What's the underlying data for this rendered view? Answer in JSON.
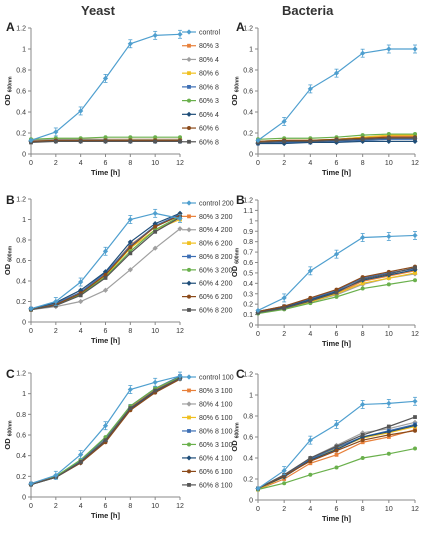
{
  "column_titles": {
    "left": "Yeast",
    "right": "Bacteria"
  },
  "subscript": "600nm",
  "colors": {
    "control": "#4f9fcf",
    "80% 3": "#e8803a",
    "80% 4": "#a0a0a0",
    "80% 6": "#f0c020",
    "80% 8": "#3c6eb4",
    "60% 3": "#6ab04c",
    "60% 4": "#1f4e79",
    "60% 6": "#8b4a1a",
    "60% 8": "#555555"
  },
  "chart_data": [
    {
      "id": "yeast-a",
      "panel_label": "A",
      "type": "line",
      "xlabel": "Time [h]",
      "ylabel": "OD",
      "xlim": [
        0,
        12
      ],
      "ylim": [
        0,
        1.2
      ],
      "xticks": [
        "0",
        "2",
        "4",
        "6",
        "8",
        "10",
        "12"
      ],
      "yticks": [
        "0",
        "0.2",
        "0.4",
        "0.6",
        "0.8",
        "1",
        "1.2"
      ],
      "x": [
        0,
        2,
        4,
        6,
        8,
        10,
        12
      ],
      "legend": "right",
      "series": [
        {
          "name": "control",
          "values": [
            0.13,
            0.21,
            0.41,
            0.72,
            1.05,
            1.13,
            1.14
          ]
        },
        {
          "name": "80% 3",
          "values": [
            0.13,
            0.14,
            0.14,
            0.14,
            0.14,
            0.14,
            0.14
          ]
        },
        {
          "name": "80% 4",
          "values": [
            0.13,
            0.14,
            0.14,
            0.14,
            0.14,
            0.14,
            0.14
          ]
        },
        {
          "name": "80% 6",
          "values": [
            0.12,
            0.13,
            0.13,
            0.13,
            0.13,
            0.13,
            0.13
          ]
        },
        {
          "name": "80% 8",
          "values": [
            0.12,
            0.13,
            0.13,
            0.13,
            0.12,
            0.12,
            0.12
          ]
        },
        {
          "name": "60% 3",
          "values": [
            0.14,
            0.15,
            0.15,
            0.16,
            0.16,
            0.16,
            0.16
          ]
        },
        {
          "name": "60% 4",
          "values": [
            0.12,
            0.12,
            0.12,
            0.12,
            0.12,
            0.12,
            0.12
          ]
        },
        {
          "name": "60% 6",
          "values": [
            0.12,
            0.13,
            0.13,
            0.13,
            0.13,
            0.13,
            0.13
          ]
        },
        {
          "name": "60% 8",
          "values": [
            0.11,
            0.12,
            0.12,
            0.12,
            0.12,
            0.12,
            0.12
          ]
        }
      ]
    },
    {
      "id": "bacteria-a",
      "panel_label": "A",
      "type": "line",
      "xlabel": "Time [h]",
      "ylabel": "OD",
      "xlim": [
        0,
        12
      ],
      "ylim": [
        0,
        1.2
      ],
      "xticks": [
        "0",
        "2",
        "4",
        "6",
        "8",
        "10",
        "12"
      ],
      "yticks": [
        "0",
        "0.2",
        "0.4",
        "0.6",
        "0.8",
        "1",
        "1.2"
      ],
      "x": [
        0,
        2,
        4,
        6,
        8,
        10,
        12
      ],
      "legend": "none",
      "series": [
        {
          "name": "control",
          "values": [
            0.13,
            0.31,
            0.62,
            0.77,
            0.96,
            1.0,
            1.0
          ]
        },
        {
          "name": "80% 3",
          "values": [
            0.12,
            0.13,
            0.13,
            0.14,
            0.16,
            0.17,
            0.17
          ]
        },
        {
          "name": "80% 4",
          "values": [
            0.11,
            0.12,
            0.12,
            0.13,
            0.14,
            0.15,
            0.15
          ]
        },
        {
          "name": "80% 6",
          "values": [
            0.12,
            0.13,
            0.13,
            0.14,
            0.16,
            0.18,
            0.18
          ]
        },
        {
          "name": "80% 8",
          "values": [
            0.1,
            0.11,
            0.11,
            0.12,
            0.13,
            0.14,
            0.14
          ]
        },
        {
          "name": "60% 3",
          "values": [
            0.14,
            0.15,
            0.15,
            0.16,
            0.18,
            0.19,
            0.19
          ]
        },
        {
          "name": "60% 4",
          "values": [
            0.1,
            0.1,
            0.11,
            0.11,
            0.12,
            0.12,
            0.12
          ]
        },
        {
          "name": "60% 6",
          "values": [
            0.12,
            0.13,
            0.13,
            0.14,
            0.15,
            0.16,
            0.16
          ]
        },
        {
          "name": "60% 8",
          "values": [
            0.11,
            0.12,
            0.12,
            0.13,
            0.14,
            0.15,
            0.15
          ]
        }
      ]
    },
    {
      "id": "yeast-b",
      "panel_label": "B",
      "type": "line",
      "xlabel": "Time [h]",
      "ylabel": "OD",
      "xlim": [
        0,
        12
      ],
      "ylim": [
        0,
        1.2
      ],
      "xticks": [
        "0",
        "2",
        "4",
        "6",
        "8",
        "10",
        "12"
      ],
      "yticks": [
        "0",
        "0.2",
        "0.4",
        "0.6",
        "0.8",
        "1",
        "1.2"
      ],
      "x": [
        0,
        2,
        4,
        6,
        8,
        10,
        12
      ],
      "legend": "right",
      "series": [
        {
          "name": "control 200",
          "values": [
            0.13,
            0.2,
            0.39,
            0.69,
            1.0,
            1.06,
            1.01
          ]
        },
        {
          "name": "80% 3 200",
          "values": [
            0.13,
            0.18,
            0.29,
            0.47,
            0.75,
            0.93,
            1.05
          ]
        },
        {
          "name": "80% 4 200",
          "values": [
            0.12,
            0.15,
            0.2,
            0.31,
            0.51,
            0.72,
            0.91
          ]
        },
        {
          "name": "80% 6 200",
          "values": [
            0.12,
            0.17,
            0.27,
            0.45,
            0.72,
            0.9,
            1.0
          ]
        },
        {
          "name": "80% 8 200",
          "values": [
            0.13,
            0.18,
            0.29,
            0.48,
            0.74,
            0.94,
            1.05
          ]
        },
        {
          "name": "60% 3 200",
          "values": [
            0.12,
            0.17,
            0.27,
            0.44,
            0.69,
            0.9,
            1.03
          ]
        },
        {
          "name": "60% 4 200",
          "values": [
            0.13,
            0.19,
            0.31,
            0.49,
            0.78,
            0.96,
            1.06
          ]
        },
        {
          "name": "60% 6 200",
          "values": [
            0.12,
            0.17,
            0.28,
            0.46,
            0.73,
            0.93,
            1.04
          ]
        },
        {
          "name": "60% 8 200",
          "values": [
            0.12,
            0.16,
            0.26,
            0.43,
            0.67,
            0.88,
            1.02
          ]
        }
      ]
    },
    {
      "id": "bacteria-b",
      "panel_label": "B",
      "type": "line",
      "xlabel": "Time [h]",
      "ylabel": "OD",
      "xlim": [
        0,
        12
      ],
      "ylim": [
        0,
        1.2
      ],
      "xticks": [
        "0",
        "2",
        "4",
        "6",
        "8",
        "10",
        "12"
      ],
      "yticks": [
        "0",
        "0.1",
        "0.2",
        "0.3",
        "0.4",
        "0.5",
        "0.6",
        "0.7",
        "0.8",
        "0.9",
        "1",
        "1.1",
        "1.2"
      ],
      "x": [
        0,
        2,
        4,
        6,
        8,
        10,
        12
      ],
      "legend": "none",
      "series": [
        {
          "name": "control",
          "values": [
            0.14,
            0.26,
            0.52,
            0.68,
            0.84,
            0.85,
            0.86
          ]
        },
        {
          "name": "80% 3",
          "values": [
            0.12,
            0.17,
            0.23,
            0.3,
            0.42,
            0.47,
            0.52
          ]
        },
        {
          "name": "80% 4",
          "values": [
            0.11,
            0.16,
            0.22,
            0.29,
            0.39,
            0.45,
            0.49
          ]
        },
        {
          "name": "80% 6",
          "values": [
            0.12,
            0.16,
            0.22,
            0.3,
            0.4,
            0.45,
            0.5
          ]
        },
        {
          "name": "80% 8",
          "values": [
            0.13,
            0.18,
            0.25,
            0.33,
            0.45,
            0.5,
            0.54
          ]
        },
        {
          "name": "60% 3",
          "values": [
            0.11,
            0.15,
            0.21,
            0.27,
            0.35,
            0.39,
            0.43
          ]
        },
        {
          "name": "60% 4",
          "values": [
            0.12,
            0.17,
            0.24,
            0.32,
            0.43,
            0.48,
            0.53
          ]
        },
        {
          "name": "60% 6",
          "values": [
            0.13,
            0.18,
            0.26,
            0.34,
            0.46,
            0.51,
            0.56
          ]
        },
        {
          "name": "60% 8",
          "values": [
            0.12,
            0.16,
            0.23,
            0.31,
            0.44,
            0.49,
            0.55
          ]
        }
      ]
    },
    {
      "id": "yeast-c",
      "panel_label": "C",
      "type": "line",
      "xlabel": "Time [h]",
      "ylabel": "OD",
      "xlim": [
        0,
        12
      ],
      "ylim": [
        0,
        1.2
      ],
      "xticks": [
        "0",
        "2",
        "4",
        "6",
        "8",
        "10",
        "12"
      ],
      "yticks": [
        "0",
        "0.2",
        "0.4",
        "0.6",
        "0.8",
        "1",
        "1.2"
      ],
      "x": [
        0,
        2,
        4,
        6,
        8,
        10,
        12
      ],
      "legend": "right",
      "series": [
        {
          "name": "control 100",
          "values": [
            0.13,
            0.21,
            0.41,
            0.69,
            1.04,
            1.11,
            1.17
          ]
        },
        {
          "name": "80% 3 100",
          "values": [
            0.12,
            0.2,
            0.35,
            0.57,
            0.87,
            1.04,
            1.16
          ]
        },
        {
          "name": "80% 4 100",
          "values": [
            0.12,
            0.2,
            0.34,
            0.55,
            0.86,
            1.03,
            1.15
          ]
        },
        {
          "name": "80% 6 100",
          "values": [
            0.12,
            0.19,
            0.34,
            0.55,
            0.85,
            1.02,
            1.15
          ]
        },
        {
          "name": "80% 8 100",
          "values": [
            0.13,
            0.2,
            0.35,
            0.57,
            0.88,
            1.05,
            1.17
          ]
        },
        {
          "name": "60% 3 100",
          "values": [
            0.12,
            0.2,
            0.36,
            0.58,
            0.88,
            1.05,
            1.16
          ]
        },
        {
          "name": "60% 4 100",
          "values": [
            0.12,
            0.19,
            0.33,
            0.54,
            0.85,
            1.02,
            1.15
          ]
        },
        {
          "name": "60% 6 100",
          "values": [
            0.13,
            0.19,
            0.33,
            0.53,
            0.84,
            1.01,
            1.14
          ]
        },
        {
          "name": "60% 8 100",
          "values": [
            0.12,
            0.19,
            0.34,
            0.55,
            0.86,
            1.03,
            1.15
          ]
        }
      ]
    },
    {
      "id": "bacteria-c",
      "panel_label": "C",
      "type": "line",
      "xlabel": "Time [h]",
      "ylabel": "OD",
      "xlim": [
        0,
        12
      ],
      "ylim": [
        0,
        1.2
      ],
      "xticks": [
        "0",
        "2",
        "4",
        "6",
        "8",
        "10",
        "12"
      ],
      "yticks": [
        "0",
        "0.2",
        "0.4",
        "0.6",
        "0.8",
        "1",
        "1.2"
      ],
      "x": [
        0,
        2,
        4,
        6,
        8,
        10,
        12
      ],
      "legend": "none",
      "series": [
        {
          "name": "control",
          "values": [
            0.11,
            0.28,
            0.57,
            0.72,
            0.91,
            0.92,
            0.94
          ]
        },
        {
          "name": "80% 3",
          "values": [
            0.1,
            0.2,
            0.35,
            0.43,
            0.55,
            0.6,
            0.67
          ]
        },
        {
          "name": "80% 4",
          "values": [
            0.11,
            0.23,
            0.4,
            0.52,
            0.64,
            0.68,
            0.74
          ]
        },
        {
          "name": "80% 6",
          "values": [
            0.1,
            0.22,
            0.38,
            0.49,
            0.59,
            0.64,
            0.7
          ]
        },
        {
          "name": "80% 8",
          "values": [
            0.11,
            0.23,
            0.39,
            0.5,
            0.6,
            0.66,
            0.72
          ]
        },
        {
          "name": "60% 3",
          "values": [
            0.1,
            0.16,
            0.24,
            0.31,
            0.4,
            0.44,
            0.49
          ]
        },
        {
          "name": "60% 4",
          "values": [
            0.11,
            0.22,
            0.38,
            0.48,
            0.6,
            0.65,
            0.71
          ]
        },
        {
          "name": "60% 6",
          "values": [
            0.11,
            0.23,
            0.37,
            0.47,
            0.57,
            0.62,
            0.66
          ]
        },
        {
          "name": "60% 8",
          "values": [
            0.11,
            0.24,
            0.4,
            0.51,
            0.62,
            0.7,
            0.79
          ]
        }
      ]
    }
  ]
}
